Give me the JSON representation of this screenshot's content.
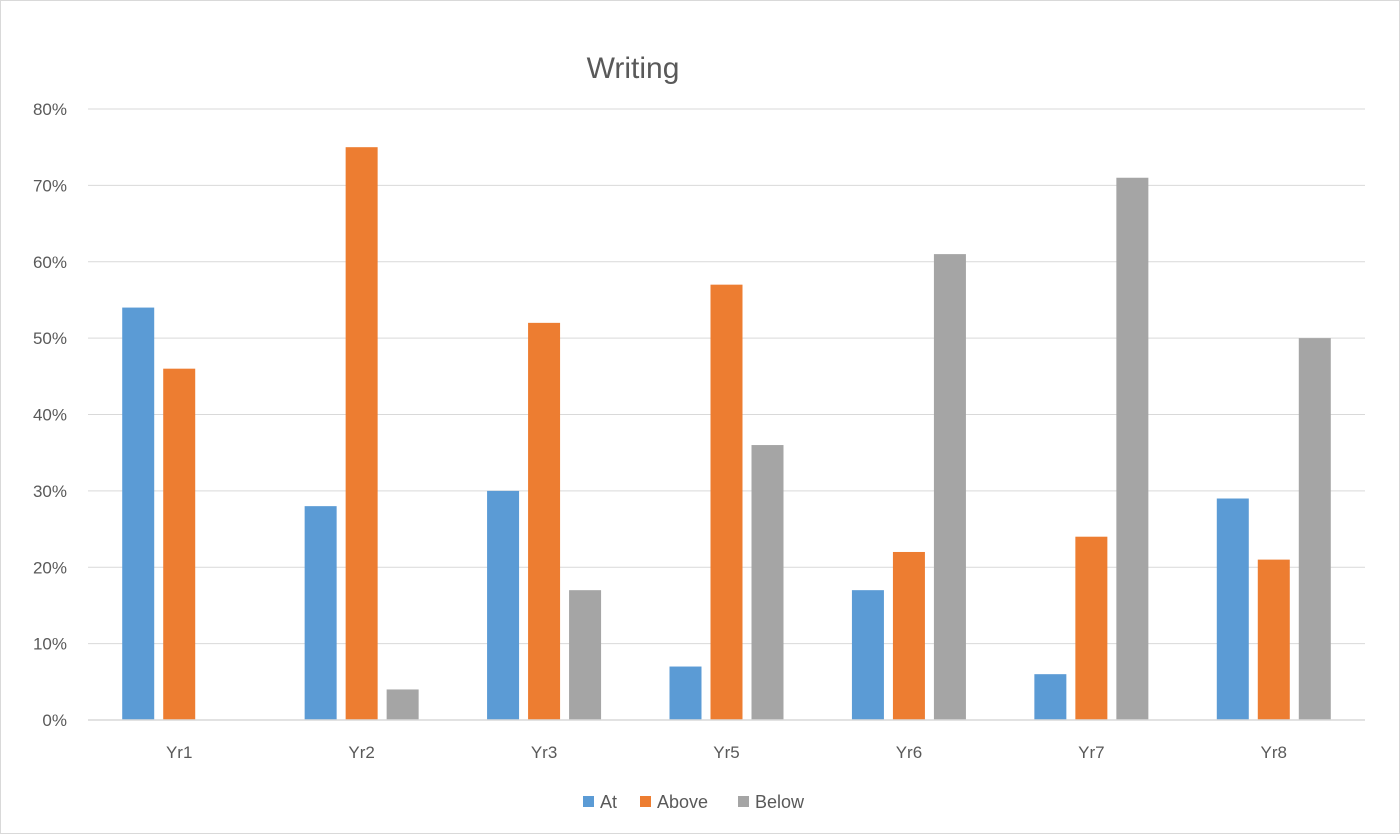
{
  "chart_data": {
    "type": "bar",
    "title": "Writing",
    "xlabel": "",
    "ylabel": "",
    "categories": [
      "Yr1",
      "Yr2",
      "Yr3",
      "Yr5",
      "Yr6",
      "Yr7",
      "Yr8"
    ],
    "series": [
      {
        "name": "At",
        "color": "#5b9bd5",
        "values": [
          54,
          28,
          30,
          7,
          17,
          6,
          29
        ]
      },
      {
        "name": "Above",
        "color": "#ed7d31",
        "values": [
          46,
          75,
          52,
          57,
          22,
          24,
          21
        ]
      },
      {
        "name": "Below",
        "color": "#a5a5a5",
        "values": [
          0,
          4,
          17,
          36,
          61,
          71,
          50
        ]
      }
    ],
    "ylim": [
      0,
      80
    ],
    "yticks": [
      0,
      10,
      20,
      30,
      40,
      50,
      60,
      70,
      80
    ],
    "ytick_labels": [
      "0%",
      "10%",
      "20%",
      "30%",
      "40%",
      "50%",
      "60%",
      "70%",
      "80%"
    ],
    "grid": true,
    "legend_position": "bottom"
  }
}
